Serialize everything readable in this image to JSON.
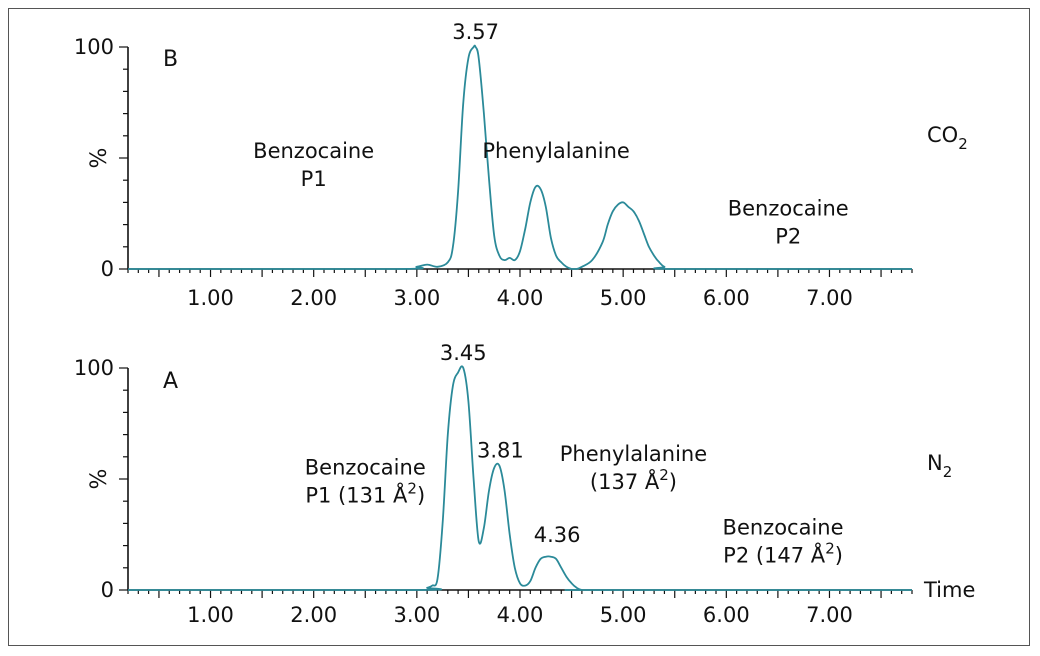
{
  "chart_data": [
    {
      "type": "line",
      "panel": "B",
      "gas": "CO₂",
      "ylabel": "%",
      "xlabel": "",
      "xlim": [
        0.2,
        7.8
      ],
      "ylim": [
        0,
        100
      ],
      "xtick_labels": [
        "1.00",
        "2.00",
        "3.00",
        "4.00",
        "5.00",
        "6.00",
        "7.00"
      ],
      "ytick_labels": [
        "0",
        "%",
        "100"
      ],
      "color": "#2b8a99",
      "peak_labels": [
        {
          "x": 3.57,
          "y": 100,
          "text": "3.57"
        }
      ],
      "annotations": [
        {
          "lines": [
            "Benzocaine",
            "P1"
          ],
          "x": 2.0,
          "y": 50
        },
        {
          "lines": [
            "Phenylalanine"
          ],
          "x": 4.35,
          "y": 50
        },
        {
          "lines": [
            "Benzocaine",
            "P2"
          ],
          "x": 6.6,
          "y": 24
        }
      ],
      "series": [
        {
          "x": [
            0.2,
            2.8,
            3.0,
            3.1,
            3.2,
            3.3,
            3.35,
            3.4,
            3.45,
            3.5,
            3.55,
            3.57,
            3.6,
            3.65,
            3.7,
            3.75,
            3.8,
            3.85,
            3.9,
            3.95,
            4.0,
            4.05,
            4.1,
            4.15,
            4.2,
            4.25,
            4.3,
            4.35,
            4.4,
            4.45,
            4.5,
            4.55,
            4.6,
            4.7,
            4.8,
            4.85,
            4.9,
            4.95,
            5.0,
            5.05,
            5.1,
            5.15,
            5.2,
            5.25,
            5.3,
            5.35,
            5.4,
            5.5,
            7.8
          ],
          "y": [
            0,
            0,
            1,
            2,
            1,
            3,
            10,
            35,
            75,
            95,
            100,
            100,
            95,
            70,
            40,
            15,
            6,
            4,
            5,
            4,
            8,
            18,
            30,
            37,
            36,
            28,
            14,
            6,
            3,
            1,
            0,
            0,
            1,
            4,
            12,
            20,
            26,
            29,
            30,
            28,
            26,
            22,
            16,
            10,
            6,
            3,
            1,
            0,
            0
          ]
        }
      ]
    },
    {
      "type": "line",
      "panel": "A",
      "gas": "N₂",
      "ylabel": "%",
      "xlabel": "Time",
      "xlim": [
        0.2,
        7.8
      ],
      "ylim": [
        0,
        100
      ],
      "xtick_labels": [
        "1.00",
        "2.00",
        "3.00",
        "4.00",
        "5.00",
        "6.00",
        "7.00"
      ],
      "ytick_labels": [
        "0",
        "%",
        "100"
      ],
      "color": "#2b8a99",
      "peak_labels": [
        {
          "x": 3.45,
          "y": 100,
          "text": "3.45"
        },
        {
          "x": 3.81,
          "y": 56,
          "text": "3.81"
        },
        {
          "x": 4.36,
          "y": 18,
          "text": "4.36"
        }
      ],
      "annotations": [
        {
          "lines": [
            "Benzocaine",
            "P1 (131 Å²)"
          ],
          "x": 2.5,
          "y": 52
        },
        {
          "lines": [
            "Phenylalanine",
            "(137 Å²)"
          ],
          "x": 5.1,
          "y": 58
        },
        {
          "lines": [
            "Benzocaine",
            "P2 (147 Å²)"
          ],
          "x": 6.55,
          "y": 25
        }
      ],
      "series": [
        {
          "x": [
            0.2,
            3.0,
            3.1,
            3.15,
            3.2,
            3.25,
            3.3,
            3.35,
            3.4,
            3.45,
            3.5,
            3.55,
            3.6,
            3.65,
            3.7,
            3.75,
            3.8,
            3.85,
            3.9,
            3.95,
            4.0,
            4.05,
            4.1,
            4.15,
            4.2,
            4.25,
            4.3,
            4.35,
            4.4,
            4.45,
            4.5,
            4.55,
            4.6,
            4.7,
            7.8
          ],
          "y": [
            0,
            0,
            1,
            2,
            5,
            30,
            70,
            92,
            98,
            100,
            85,
            50,
            22,
            28,
            45,
            55,
            56,
            45,
            25,
            10,
            3,
            2,
            4,
            10,
            14,
            15,
            15,
            14,
            10,
            6,
            3,
            1,
            0,
            0,
            0
          ]
        }
      ]
    }
  ]
}
